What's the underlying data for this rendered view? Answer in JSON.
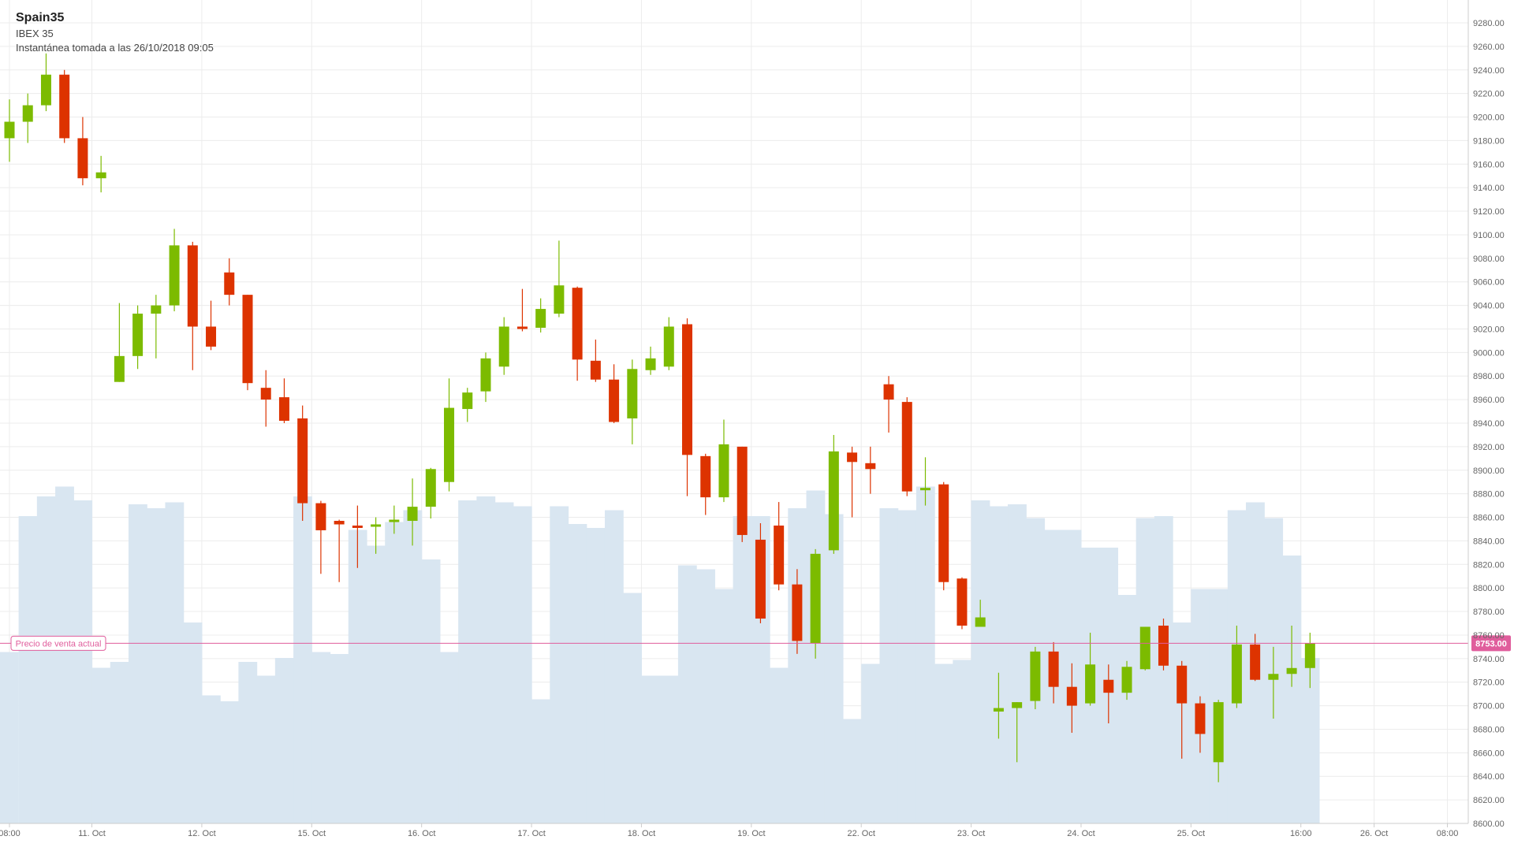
{
  "chart_data": {
    "type": "candlestick",
    "title": "Spain35",
    "subtitle": "IBEX 35",
    "snapshot_text": "Instantánea tomada a las 26/10/2018 09:05",
    "ylim": [
      8600,
      9290
    ],
    "y_ticks": [
      "9280.00",
      "9260.00",
      "9240.00",
      "9220.00",
      "9200.00",
      "9180.00",
      "9160.00",
      "9140.00",
      "9120.00",
      "9100.00",
      "9080.00",
      "9060.00",
      "9040.00",
      "9020.00",
      "9000.00",
      "8980.00",
      "8960.00",
      "8940.00",
      "8920.00",
      "8900.00",
      "8880.00",
      "8860.00",
      "8840.00",
      "8820.00",
      "8800.00",
      "8780.00",
      "8760.00",
      "8740.00",
      "8720.00",
      "8700.00",
      "8680.00",
      "8660.00",
      "8640.00",
      "8620.00",
      "8600.00"
    ],
    "x_ticks": [
      {
        "index": 0,
        "label": "08:00"
      },
      {
        "index": 4.5,
        "label": "11. Oct"
      },
      {
        "index": 10.5,
        "label": "12. Oct"
      },
      {
        "index": 16.5,
        "label": "15. Oct"
      },
      {
        "index": 22.5,
        "label": "16. Oct"
      },
      {
        "index": 28.5,
        "label": "17. Oct"
      },
      {
        "index": 34.5,
        "label": "18. Oct"
      },
      {
        "index": 40.5,
        "label": "19. Oct"
      },
      {
        "index": 46.5,
        "label": "22. Oct"
      },
      {
        "index": 52.5,
        "label": "23. Oct"
      },
      {
        "index": 58.5,
        "label": "24. Oct"
      },
      {
        "index": 64.5,
        "label": "25. Oct"
      },
      {
        "index": 70.5,
        "label": "16:00"
      },
      {
        "index": 74.5,
        "label": "26. Oct"
      },
      {
        "index": 78.5,
        "label": "08:00"
      }
    ],
    "current_price": {
      "value": 8753,
      "label": "Precio de venta actual",
      "value_label": "8753.00"
    },
    "colors": {
      "up": "#7cbb00",
      "down": "#dd3300",
      "volume": "#d9e6f1",
      "price_line": "#e05d9c",
      "grid": "#ececec"
    },
    "volume_range": [
      0,
      1000
    ],
    "candles": [
      {
        "o": 9182,
        "h": 9215,
        "l": 9162,
        "c": 9196
      },
      {
        "o": 9196,
        "h": 9220,
        "l": 9178,
        "c": 9210
      },
      {
        "o": 9210,
        "h": 9254,
        "l": 9205,
        "c": 9236
      },
      {
        "o": 9236,
        "h": 9240,
        "l": 9178,
        "c": 9182
      },
      {
        "o": 9182,
        "h": 9200,
        "l": 9142,
        "c": 9148
      },
      {
        "o": 9148,
        "h": 9167,
        "l": 9136,
        "c": 9153
      },
      {
        "o": 8975,
        "h": 9042,
        "l": 8975,
        "c": 8997
      },
      {
        "o": 8997,
        "h": 9040,
        "l": 8986,
        "c": 9033
      },
      {
        "o": 9033,
        "h": 9049,
        "l": 8995,
        "c": 9040
      },
      {
        "o": 9040,
        "h": 9105,
        "l": 9035,
        "c": 9091
      },
      {
        "o": 9091,
        "h": 9094,
        "l": 8985,
        "c": 9022
      },
      {
        "o": 9022,
        "h": 9044,
        "l": 9002,
        "c": 9005
      },
      {
        "o": 9068,
        "h": 9080,
        "l": 9040,
        "c": 9049
      },
      {
        "o": 9049,
        "h": 9049,
        "l": 8968,
        "c": 8974
      },
      {
        "o": 8970,
        "h": 8985,
        "l": 8937,
        "c": 8960
      },
      {
        "o": 8962,
        "h": 8978,
        "l": 8940,
        "c": 8942
      },
      {
        "o": 8944,
        "h": 8955,
        "l": 8857,
        "c": 8872
      },
      {
        "o": 8872,
        "h": 8874,
        "l": 8812,
        "c": 8849
      },
      {
        "o": 8857,
        "h": 8858,
        "l": 8805,
        "c": 8854
      },
      {
        "o": 8853,
        "h": 8870,
        "l": 8817,
        "c": 8851
      },
      {
        "o": 8852,
        "h": 8860,
        "l": 8829,
        "c": 8854
      },
      {
        "o": 8856,
        "h": 8870,
        "l": 8846,
        "c": 8858
      },
      {
        "o": 8857,
        "h": 8893,
        "l": 8836,
        "c": 8869
      },
      {
        "o": 8869,
        "h": 8902,
        "l": 8859,
        "c": 8901
      },
      {
        "o": 8890,
        "h": 8978,
        "l": 8882,
        "c": 8953
      },
      {
        "o": 8952,
        "h": 8970,
        "l": 8941,
        "c": 8966
      },
      {
        "o": 8967,
        "h": 9000,
        "l": 8958,
        "c": 8995
      },
      {
        "o": 8988,
        "h": 9030,
        "l": 8981,
        "c": 9022
      },
      {
        "o": 9022,
        "h": 9054,
        "l": 9018,
        "c": 9021
      },
      {
        "o": 9021,
        "h": 9046,
        "l": 9017,
        "c": 9037
      },
      {
        "o": 9033,
        "h": 9095,
        "l": 9030,
        "c": 9057
      },
      {
        "o": 9055,
        "h": 9056,
        "l": 8976,
        "c": 8994
      },
      {
        "o": 8993,
        "h": 9011,
        "l": 8975,
        "c": 8977
      },
      {
        "o": 8977,
        "h": 8990,
        "l": 8940,
        "c": 8941
      },
      {
        "o": 8944,
        "h": 8994,
        "l": 8922,
        "c": 8986
      },
      {
        "o": 8985,
        "h": 9005,
        "l": 8981,
        "c": 8995
      },
      {
        "o": 8988,
        "h": 9030,
        "l": 8985,
        "c": 9022
      },
      {
        "o": 9024,
        "h": 9029,
        "l": 8878,
        "c": 8913
      },
      {
        "o": 8912,
        "h": 8914,
        "l": 8862,
        "c": 8877
      },
      {
        "o": 8877,
        "h": 8943,
        "l": 8873,
        "c": 8922
      },
      {
        "o": 8920,
        "h": 8920,
        "l": 8839,
        "c": 8845
      },
      {
        "o": 8841,
        "h": 8855,
        "l": 8770,
        "c": 8774
      },
      {
        "o": 8853,
        "h": 8873,
        "l": 8798,
        "c": 8803
      },
      {
        "o": 8803,
        "h": 8816,
        "l": 8744,
        "c": 8755
      },
      {
        "o": 8753,
        "h": 8833,
        "l": 8740,
        "c": 8829
      },
      {
        "o": 8832,
        "h": 8930,
        "l": 8829,
        "c": 8916
      },
      {
        "o": 8915,
        "h": 8920,
        "l": 8860,
        "c": 8907
      },
      {
        "o": 8906,
        "h": 8920,
        "l": 8880,
        "c": 8901
      },
      {
        "o": 8973,
        "h": 8980,
        "l": 8932,
        "c": 8960
      },
      {
        "o": 8958,
        "h": 8962,
        "l": 8878,
        "c": 8882
      },
      {
        "o": 8883,
        "h": 8911,
        "l": 8870,
        "c": 8885
      },
      {
        "o": 8888,
        "h": 8890,
        "l": 8798,
        "c": 8805
      },
      {
        "o": 8808,
        "h": 8809,
        "l": 8765,
        "c": 8768
      },
      {
        "o": 8767,
        "h": 8790,
        "l": 8768,
        "c": 8775
      },
      {
        "o": 8695,
        "h": 8728,
        "l": 8672,
        "c": 8698
      },
      {
        "o": 8698,
        "h": 8703,
        "l": 8652,
        "c": 8703
      },
      {
        "o": 8704,
        "h": 8750,
        "l": 8697,
        "c": 8746
      },
      {
        "o": 8746,
        "h": 8754,
        "l": 8702,
        "c": 8716
      },
      {
        "o": 8716,
        "h": 8736,
        "l": 8677,
        "c": 8700
      },
      {
        "o": 8702,
        "h": 8762,
        "l": 8700,
        "c": 8735
      },
      {
        "o": 8722,
        "h": 8735,
        "l": 8685,
        "c": 8711
      },
      {
        "o": 8711,
        "h": 8738,
        "l": 8705,
        "c": 8733
      },
      {
        "o": 8731,
        "h": 8767,
        "l": 8730,
        "c": 8767
      },
      {
        "o": 8768,
        "h": 8774,
        "l": 8730,
        "c": 8734
      },
      {
        "o": 8734,
        "h": 8738,
        "l": 8655,
        "c": 8702
      },
      {
        "o": 8702,
        "h": 8708,
        "l": 8660,
        "c": 8676
      },
      {
        "o": 8652,
        "h": 8705,
        "l": 8635,
        "c": 8703
      },
      {
        "o": 8702,
        "h": 8768,
        "l": 8698,
        "c": 8752
      },
      {
        "o": 8752,
        "h": 8761,
        "l": 8721,
        "c": 8722
      },
      {
        "o": 8722,
        "h": 8750,
        "l": 8689,
        "c": 8727
      },
      {
        "o": 8727,
        "h": 8768,
        "l": 8716,
        "c": 8732
      },
      {
        "o": 8732,
        "h": 8762,
        "l": 8715,
        "c": 8753
      }
    ],
    "volumes": [
      435,
      780,
      830,
      855,
      820,
      395,
      410,
      810,
      800,
      815,
      510,
      325,
      310,
      410,
      375,
      420,
      830,
      435,
      430,
      745,
      705,
      765,
      795,
      670,
      435,
      820,
      830,
      815,
      805,
      315,
      805,
      760,
      750,
      795,
      585,
      375,
      375,
      655,
      645,
      595,
      780,
      780,
      395,
      800,
      845,
      785,
      265,
      405,
      800,
      795,
      855,
      405,
      415,
      820,
      805,
      810,
      775,
      745,
      745,
      700,
      700,
      580,
      775,
      780,
      510,
      595,
      595,
      795,
      815,
      775,
      680,
      420
    ]
  }
}
